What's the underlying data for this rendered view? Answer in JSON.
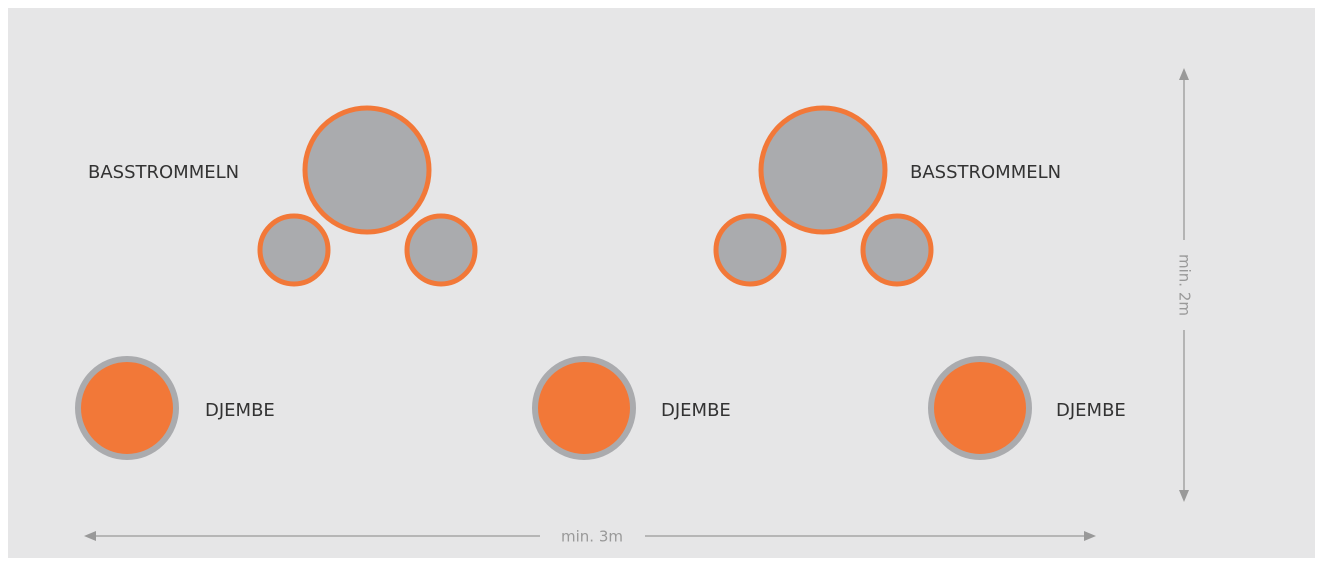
{
  "bass_groups": [
    {
      "label": "BASSTROMMELN"
    },
    {
      "label": "BASSTROMMELN"
    }
  ],
  "djembes": [
    {
      "label": "DJEMBE"
    },
    {
      "label": "DJEMBE"
    },
    {
      "label": "DJEMBE"
    }
  ],
  "dimensions": {
    "height": "min. 2m",
    "width": "min. 3m"
  }
}
